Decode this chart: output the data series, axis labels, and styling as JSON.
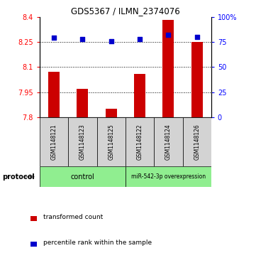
{
  "title": "GDS5367 / ILMN_2374076",
  "samples": [
    "GSM1148121",
    "GSM1148123",
    "GSM1148125",
    "GSM1148122",
    "GSM1148124",
    "GSM1148126"
  ],
  "red_values": [
    8.07,
    7.97,
    7.85,
    8.06,
    8.38,
    8.25
  ],
  "blue_values": [
    79,
    78,
    76,
    78,
    82,
    80
  ],
  "ylim_left": [
    7.8,
    8.4
  ],
  "ylim_right": [
    0,
    100
  ],
  "yticks_left": [
    7.8,
    7.95,
    8.1,
    8.25,
    8.4
  ],
  "ytick_labels_left": [
    "7.8",
    "7.95",
    "8.1",
    "8.25",
    "8.4"
  ],
  "yticks_right": [
    0,
    25,
    50,
    75,
    100
  ],
  "ytick_labels_right": [
    "0",
    "25",
    "50",
    "75",
    "100%"
  ],
  "dotted_lines": [
    7.95,
    8.1,
    8.25
  ],
  "bar_color": "#cc0000",
  "dot_color": "#0000cc",
  "bar_bottom": 7.8,
  "sample_box_color": "#d3d3d3",
  "protocol_color": "#90ee90",
  "protocol_label": "protocol",
  "control_label": "control",
  "mir_label": "miR-542-3p overexpression",
  "legend_red_label": "transformed count",
  "legend_blue_label": "percentile rank within the sample"
}
